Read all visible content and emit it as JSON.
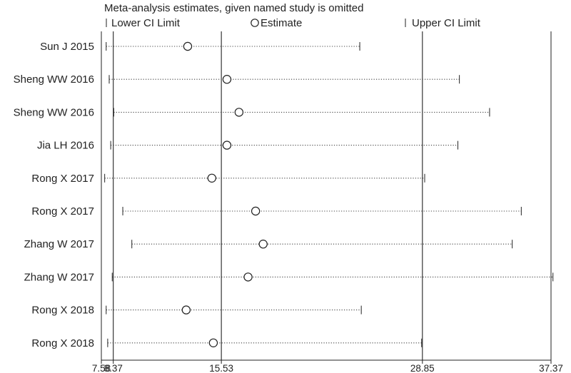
{
  "chart_data": {
    "type": "scatter",
    "title": "Meta-analysis estimates, given named study is omitted",
    "legend": {
      "placement": "top",
      "lower_label": "Lower CI Limit",
      "estimate_label": "Estimate",
      "upper_label": "Upper CI Limit"
    },
    "xlim": [
      7.58,
      37.37
    ],
    "x_ticks": [
      {
        "value": 7.58,
        "label": "7.58"
      },
      {
        "value": 8.37,
        "label": "8.37"
      },
      {
        "value": 15.53,
        "label": "15.53"
      },
      {
        "value": 28.85,
        "label": "28.85"
      },
      {
        "value": 37.37,
        "label": "37.37"
      }
    ],
    "reference_lines": [
      8.37,
      15.53,
      28.85
    ],
    "studies": [
      {
        "name": "Sun J 2015",
        "lower": 7.9,
        "estimate": 13.3,
        "upper": 24.7
      },
      {
        "name": "Sheng WW 2016",
        "lower": 8.1,
        "estimate": 15.9,
        "upper": 31.3
      },
      {
        "name": "Sheng WW 2016",
        "lower": 8.4,
        "estimate": 16.7,
        "upper": 33.3
      },
      {
        "name": "Jia LH 2016",
        "lower": 8.2,
        "estimate": 15.9,
        "upper": 31.2
      },
      {
        "name": "Rong X 2017",
        "lower": 7.8,
        "estimate": 14.9,
        "upper": 29.0
      },
      {
        "name": "Rong X 2017",
        "lower": 9.0,
        "estimate": 17.8,
        "upper": 35.4
      },
      {
        "name": "Zhang W 2017",
        "lower": 9.6,
        "estimate": 18.3,
        "upper": 34.8
      },
      {
        "name": "Zhang W 2017",
        "lower": 8.3,
        "estimate": 17.3,
        "upper": 37.5
      },
      {
        "name": "Rong X 2018",
        "lower": 7.9,
        "estimate": 13.2,
        "upper": 24.8
      },
      {
        "name": "Rong X 2018",
        "lower": 8.0,
        "estimate": 15.0,
        "upper": 28.8
      }
    ]
  }
}
